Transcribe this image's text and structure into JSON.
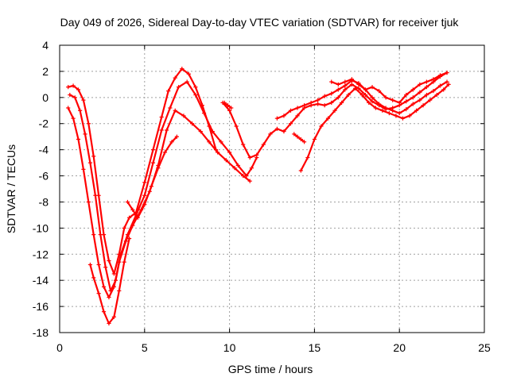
{
  "chart_data": {
    "type": "scatter",
    "title": "Day 049 of 2026, Sidereal Day-to-day VTEC variation (SDTVAR) for receiver tjuk",
    "xlabel": "GPS time / hours",
    "ylabel": "SDTVAR / TECUs",
    "xlim": [
      0,
      25
    ],
    "ylim": [
      -18,
      4
    ],
    "xticks": [
      0,
      5,
      10,
      15,
      20,
      25
    ],
    "yticks": [
      -18,
      -16,
      -14,
      -12,
      -10,
      -8,
      -6,
      -4,
      -2,
      0,
      2,
      4
    ],
    "grid": true,
    "legend": "none",
    "marker": "plus",
    "color": "#ff0000",
    "series": [
      {
        "x": [
          0.5,
          0.8,
          1.1,
          1.4,
          1.7,
          2.0,
          2.3,
          2.6,
          2.9,
          3.2,
          3.5,
          3.8,
          4.1,
          4.5,
          5.0,
          5.5,
          6.0,
          6.4,
          6.8,
          7.2,
          7.6,
          8.0,
          8.4,
          8.8,
          9.2
        ],
        "y": [
          0.8,
          0.9,
          0.6,
          -0.2,
          -2.0,
          -4.5,
          -7.5,
          -10.5,
          -12.5,
          -13.5,
          -12.0,
          -10.0,
          -9.2,
          -8.8,
          -6.5,
          -4.0,
          -1.5,
          0.5,
          1.5,
          2.2,
          1.8,
          0.8,
          -0.6,
          -2.2,
          -4.0
        ]
      },
      {
        "x": [
          0.6,
          0.9,
          1.2,
          1.5,
          1.8,
          2.1,
          2.4,
          2.7,
          3.0,
          3.3,
          3.6,
          4.0,
          4.5,
          5.0,
          5.5,
          6.0,
          6.5,
          7.0,
          7.5,
          8.0,
          8.5,
          9.0,
          9.5,
          10.0,
          10.5,
          11.0,
          11.3,
          11.6
        ],
        "y": [
          0.2,
          0.0,
          -1.0,
          -2.8,
          -5.0,
          -7.5,
          -10.5,
          -13.0,
          -14.8,
          -14.0,
          -12.0,
          -10.5,
          -9.0,
          -7.5,
          -5.0,
          -2.5,
          -0.8,
          0.8,
          1.2,
          0.2,
          -1.2,
          -2.6,
          -3.4,
          -4.2,
          -5.2,
          -6.0,
          -5.4,
          -4.6
        ]
      },
      {
        "x": [
          0.5,
          0.8,
          1.1,
          1.4,
          1.7,
          2.0,
          2.3,
          2.6,
          2.9,
          3.2,
          3.5,
          3.9,
          4.3,
          4.8,
          5.3,
          5.8,
          6.3,
          6.8,
          7.3,
          7.8,
          8.3,
          8.8,
          9.3,
          9.8,
          10.3,
          10.8,
          11.2
        ],
        "y": [
          -0.8,
          -1.6,
          -3.2,
          -5.5,
          -8.0,
          -10.5,
          -12.8,
          -14.5,
          -15.3,
          -14.5,
          -12.6,
          -11.0,
          -9.8,
          -8.6,
          -7.2,
          -5.2,
          -2.5,
          -1.0,
          -1.4,
          -2.0,
          -2.6,
          -3.4,
          -4.2,
          -4.8,
          -5.4,
          -6.0,
          -6.4
        ]
      },
      {
        "x": [
          1.8,
          2.0,
          2.3,
          2.6,
          2.9,
          3.2,
          3.5,
          3.8,
          4.1
        ],
        "y": [
          -12.8,
          -13.8,
          -15.0,
          -16.4,
          -17.3,
          -16.8,
          -14.8,
          -12.6,
          -10.8
        ]
      },
      {
        "x": [
          4.0,
          4.3,
          4.6,
          5.0,
          5.4,
          5.8,
          6.2,
          6.6,
          6.9
        ],
        "y": [
          -8.0,
          -8.6,
          -9.2,
          -8.2,
          -6.8,
          -5.4,
          -4.2,
          -3.4,
          -3.0
        ]
      },
      {
        "x": [
          9.6,
          10.0,
          10.4,
          10.8,
          11.2,
          11.6,
          12.0,
          12.4,
          12.8,
          13.2,
          13.6,
          14.0,
          14.4,
          14.8,
          15.2,
          15.6,
          16.0,
          16.4,
          16.8,
          17.2,
          17.6,
          18.0,
          18.4,
          18.8,
          19.2,
          19.6,
          20.0,
          20.4,
          20.8,
          21.2,
          21.6,
          22.0,
          22.4,
          22.8
        ],
        "y": [
          -0.4,
          -1.0,
          -2.2,
          -3.6,
          -4.6,
          -4.4,
          -3.6,
          -2.8,
          -2.4,
          -2.6,
          -2.0,
          -1.4,
          -0.8,
          -0.6,
          -0.5,
          -0.6,
          -0.4,
          0.0,
          0.6,
          1.0,
          0.7,
          0.2,
          -0.3,
          -0.6,
          -0.9,
          -0.8,
          -0.6,
          -0.3,
          0.0,
          0.4,
          0.8,
          1.2,
          1.6,
          1.9
        ]
      },
      {
        "x": [
          12.8,
          13.2,
          13.6,
          14.0,
          14.4,
          14.8,
          15.2,
          15.6,
          16.0,
          16.4,
          16.8,
          17.2,
          17.6,
          18.0,
          18.4,
          18.8,
          19.2,
          19.6,
          20.0,
          20.4,
          20.8,
          21.2,
          21.6,
          22.0,
          22.4,
          22.8
        ],
        "y": [
          -1.6,
          -1.4,
          -1.0,
          -0.8,
          -0.6,
          -0.4,
          -0.2,
          0.1,
          0.3,
          0.6,
          0.9,
          1.3,
          1.1,
          0.6,
          0.0,
          -0.5,
          -0.8,
          -1.0,
          -1.2,
          -0.9,
          -0.5,
          -0.2,
          0.2,
          0.5,
          0.9,
          1.2
        ]
      },
      {
        "x": [
          14.2,
          14.6,
          15.0,
          15.4,
          15.8,
          16.2,
          16.6,
          17.0,
          17.4,
          17.8,
          18.2,
          18.6,
          19.0,
          19.4,
          19.8,
          20.2,
          20.6,
          21.0,
          21.4,
          21.8,
          22.2,
          22.6,
          22.9
        ],
        "y": [
          -5.6,
          -4.6,
          -3.2,
          -2.2,
          -1.6,
          -1.0,
          -0.4,
          0.2,
          0.7,
          0.2,
          -0.4,
          -0.8,
          -1.0,
          -1.2,
          -1.4,
          -1.6,
          -1.4,
          -1.0,
          -0.6,
          -0.2,
          0.2,
          0.6,
          1.0
        ]
      },
      {
        "x": [
          16.0,
          16.4,
          16.8,
          17.2,
          17.6,
          18.0,
          18.4,
          18.8,
          19.2,
          19.6,
          20.0,
          20.4,
          20.8,
          21.2,
          21.6,
          22.0,
          22.4,
          22.8
        ],
        "y": [
          1.2,
          1.0,
          1.2,
          1.4,
          1.0,
          0.6,
          0.8,
          0.5,
          0.0,
          -0.2,
          -0.4,
          0.2,
          0.6,
          1.0,
          1.2,
          1.4,
          1.7,
          1.9
        ]
      },
      {
        "x": [
          13.8,
          14.0,
          14.2,
          14.4
        ],
        "y": [
          -2.8,
          -3.0,
          -3.2,
          -3.4
        ]
      },
      {
        "x": [
          9.7,
          9.9,
          10.1
        ],
        "y": [
          -0.4,
          -0.6,
          -0.8
        ]
      }
    ]
  }
}
